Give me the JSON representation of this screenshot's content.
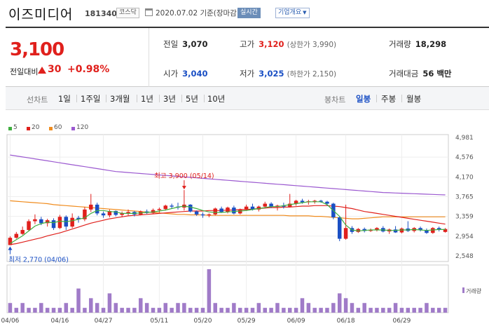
{
  "header": {
    "company_name": "이즈미디어",
    "code": "181340",
    "market_badge": "코스닥",
    "date_text": "2020.07.02 기준(장마감)",
    "live_badge": "실시간",
    "info_button": "기업개요",
    "info_caret": "▼"
  },
  "price": {
    "current": "3,100",
    "change_label": "전일대비",
    "change_value": "30",
    "change_pct": "+0.98%"
  },
  "stats": {
    "prev_close": {
      "label": "전일",
      "value": "3,070"
    },
    "high": {
      "label": "고가",
      "value": "3,120",
      "sub": "(상한가 3,990)"
    },
    "volume": {
      "label": "거래량",
      "value": "18,298"
    },
    "open": {
      "label": "시가",
      "value": "3,040"
    },
    "low": {
      "label": "저가",
      "value": "3,025",
      "sub": "(하한가 2,150)"
    },
    "amount": {
      "label": "거래대금",
      "value": "56 백만"
    }
  },
  "periods": {
    "line_label": "선차트",
    "line_items": [
      "1일",
      "1주일",
      "3개월",
      "1년",
      "3년",
      "5년",
      "10년"
    ],
    "candle_label": "봉차트",
    "candle_items": [
      "일봉",
      "주봉",
      "월봉"
    ],
    "active_candle": "일봉"
  },
  "legend": [
    {
      "label": "5",
      "color": "#3fae3f"
    },
    {
      "label": "20",
      "color": "#e0201c"
    },
    {
      "label": "60",
      "color": "#f08c1e"
    },
    {
      "label": "120",
      "color": "#9b59d0"
    }
  ],
  "chart_data": {
    "type": "candlestick",
    "y_ticks": [
      "4,981",
      "4,576",
      "4,170",
      "3,765",
      "3,359",
      "2,954",
      "2,548"
    ],
    "ylim": [
      2548,
      4981
    ],
    "x_ticks": [
      "04/06",
      "04/16",
      "04/27",
      "05/11",
      "05/20",
      "05/29",
      "06/09",
      "06/18",
      "06/29"
    ],
    "max_annotation": "최고 3,900 (05/14)",
    "min_annotation": "최저 2,770 (04/06)",
    "volume_label": "거래량",
    "up_color": "#e0201c",
    "down_color": "#1a4fc4",
    "candles": [
      [
        2770,
        2950,
        2770,
        2920
      ],
      [
        2920,
        3040,
        2900,
        3000
      ],
      [
        3000,
        3150,
        2980,
        3080
      ],
      [
        3080,
        3300,
        3050,
        3260
      ],
      [
        3260,
        3400,
        3200,
        3300
      ],
      [
        3300,
        3350,
        3180,
        3220
      ],
      [
        3220,
        3310,
        3150,
        3280
      ],
      [
        3280,
        3320,
        3080,
        3120
      ],
      [
        3120,
        3390,
        3100,
        3350
      ],
      [
        3350,
        3380,
        3080,
        3150
      ],
      [
        3150,
        3420,
        3120,
        3330
      ],
      [
        3330,
        3370,
        3230,
        3300
      ],
      [
        3300,
        3550,
        3260,
        3500
      ],
      [
        3500,
        3820,
        3450,
        3600
      ],
      [
        3600,
        3640,
        3380,
        3420
      ],
      [
        3420,
        3460,
        3330,
        3380
      ],
      [
        3380,
        3500,
        3340,
        3470
      ],
      [
        3470,
        3480,
        3360,
        3390
      ],
      [
        3390,
        3460,
        3340,
        3420
      ],
      [
        3420,
        3500,
        3380,
        3450
      ],
      [
        3450,
        3470,
        3360,
        3400
      ],
      [
        3400,
        3480,
        3380,
        3460
      ],
      [
        3460,
        3500,
        3410,
        3430
      ],
      [
        3430,
        3520,
        3410,
        3490
      ],
      [
        3490,
        3540,
        3440,
        3510
      ],
      [
        3510,
        3600,
        3480,
        3580
      ],
      [
        3580,
        3620,
        3520,
        3560
      ],
      [
        3560,
        3640,
        3500,
        3540
      ],
      [
        3540,
        3900,
        3480,
        3600
      ],
      [
        3600,
        3610,
        3440,
        3460
      ],
      [
        3460,
        3480,
        3370,
        3400
      ],
      [
        3400,
        3440,
        3330,
        3380
      ],
      [
        3380,
        3420,
        3340,
        3400
      ],
      [
        3400,
        3540,
        3380,
        3520
      ],
      [
        3520,
        3560,
        3430,
        3450
      ],
      [
        3450,
        3560,
        3420,
        3540
      ],
      [
        3540,
        3580,
        3400,
        3420
      ],
      [
        3420,
        3520,
        3400,
        3500
      ],
      [
        3500,
        3600,
        3480,
        3560
      ],
      [
        3560,
        3620,
        3480,
        3500
      ],
      [
        3500,
        3580,
        3460,
        3560
      ],
      [
        3560,
        3660,
        3520,
        3620
      ],
      [
        3620,
        3650,
        3530,
        3560
      ],
      [
        3560,
        3600,
        3480,
        3580
      ],
      [
        3580,
        3640,
        3520,
        3560
      ],
      [
        3560,
        3820,
        3540,
        3620
      ],
      [
        3620,
        3700,
        3580,
        3680
      ],
      [
        3680,
        3720,
        3620,
        3650
      ],
      [
        3650,
        3700,
        3600,
        3670
      ],
      [
        3670,
        3700,
        3620,
        3680
      ],
      [
        3680,
        3700,
        3640,
        3660
      ],
      [
        3660,
        3680,
        3580,
        3620
      ],
      [
        3620,
        3640,
        3300,
        3340
      ],
      [
        3340,
        3360,
        2850,
        2900
      ],
      [
        2900,
        3600,
        2880,
        3120
      ],
      [
        3120,
        3160,
        3000,
        3040
      ],
      [
        3040,
        3120,
        3020,
        3100
      ],
      [
        3100,
        3130,
        3030,
        3060
      ],
      [
        3060,
        3110,
        3040,
        3080
      ],
      [
        3080,
        3140,
        3050,
        3120
      ],
      [
        3120,
        3160,
        3030,
        3050
      ],
      [
        3050,
        3110,
        3000,
        3090
      ],
      [
        3090,
        3160,
        3020,
        3030
      ],
      [
        3030,
        3130,
        3010,
        3110
      ],
      [
        3110,
        3260,
        3040,
        3060
      ],
      [
        3060,
        3140,
        3030,
        3120
      ],
      [
        3120,
        3150,
        3050,
        3080
      ],
      [
        3080,
        3110,
        3000,
        3020
      ],
      [
        3020,
        3140,
        3000,
        3120
      ],
      [
        3120,
        3150,
        3050,
        3090
      ],
      [
        3040,
        3120,
        3025,
        3100
      ]
    ],
    "volumes": [
      2,
      1,
      2,
      1,
      1,
      2,
      1,
      1,
      1,
      2,
      1,
      5,
      1,
      3,
      2,
      1,
      4,
      2,
      1,
      1,
      1,
      3,
      2,
      1,
      1,
      2,
      1,
      2,
      2,
      1,
      1,
      1,
      9,
      2,
      1,
      1,
      2,
      1,
      1,
      1,
      2,
      1,
      1,
      2,
      1,
      1,
      1,
      3,
      2,
      1,
      1,
      1,
      2,
      4,
      3,
      2,
      1,
      2,
      1,
      1,
      1,
      1,
      2,
      1,
      1,
      1,
      1,
      2,
      1,
      1,
      1
    ],
    "ma5": [
      2800,
      2880,
      2960,
      3060,
      3160,
      3210,
      3240,
      3230,
      3260,
      3250,
      3270,
      3300,
      3330,
      3420,
      3480,
      3480,
      3460,
      3450,
      3420,
      3420,
      3420,
      3430,
      3440,
      3450,
      3470,
      3490,
      3520,
      3550,
      3570,
      3550,
      3520,
      3480,
      3450,
      3440,
      3440,
      3450,
      3460,
      3470,
      3480,
      3500,
      3520,
      3540,
      3560,
      3560,
      3580,
      3600,
      3620,
      3640,
      3660,
      3660,
      3660,
      3600,
      3480,
      3360,
      3180,
      3080,
      3060,
      3070,
      3080,
      3080,
      3080,
      3070,
      3070,
      3080,
      3080,
      3090,
      3080,
      3070,
      3080,
      3090,
      3090
    ],
    "ma20": [
      2780,
      2800,
      2830,
      2860,
      2890,
      2920,
      2960,
      2990,
      3020,
      3060,
      3100,
      3140,
      3180,
      3220,
      3250,
      3280,
      3310,
      3330,
      3350,
      3370,
      3380,
      3390,
      3400,
      3410,
      3420,
      3430,
      3440,
      3450,
      3460,
      3470,
      3470,
      3470,
      3480,
      3480,
      3480,
      3490,
      3490,
      3500,
      3500,
      3510,
      3520,
      3530,
      3540,
      3540,
      3550,
      3550,
      3560,
      3570,
      3570,
      3580,
      3580,
      3580,
      3570,
      3560,
      3540,
      3520,
      3490,
      3460,
      3440,
      3420,
      3400,
      3380,
      3360,
      3340,
      3320,
      3300,
      3280,
      3260,
      3240,
      3220,
      3200
    ],
    "ma60": [
      3680,
      3670,
      3660,
      3650,
      3640,
      3630,
      3620,
      3600,
      3590,
      3580,
      3570,
      3560,
      3550,
      3540,
      3530,
      3520,
      3510,
      3500,
      3490,
      3480,
      3470,
      3460,
      3450,
      3440,
      3430,
      3420,
      3410,
      3400,
      3400,
      3390,
      3390,
      3390,
      3380,
      3380,
      3380,
      3380,
      3380,
      3380,
      3380,
      3380,
      3380,
      3380,
      3380,
      3380,
      3380,
      3370,
      3370,
      3370,
      3370,
      3360,
      3360,
      3350,
      3340,
      3330,
      3320,
      3310,
      3310,
      3320,
      3330,
      3340,
      3350,
      3350,
      3350,
      3350,
      3350,
      3350,
      3350,
      3350,
      3350,
      3350,
      3350
    ],
    "ma120": [
      4620,
      4600,
      4580,
      4560,
      4540,
      4520,
      4500,
      4480,
      4460,
      4440,
      4420,
      4400,
      4380,
      4360,
      4340,
      4320,
      4300,
      4280,
      4270,
      4260,
      4250,
      4240,
      4230,
      4220,
      4210,
      4200,
      4190,
      4180,
      4170,
      4160,
      4150,
      4140,
      4130,
      4120,
      4110,
      4100,
      4090,
      4080,
      4070,
      4060,
      4050,
      4040,
      4030,
      4020,
      4010,
      4000,
      3990,
      3980,
      3970,
      3960,
      3950,
      3940,
      3930,
      3920,
      3910,
      3900,
      3890,
      3880,
      3870,
      3860,
      3850,
      3845,
      3840,
      3835,
      3830,
      3825,
      3820,
      3815,
      3810,
      3805,
      3800
    ]
  }
}
